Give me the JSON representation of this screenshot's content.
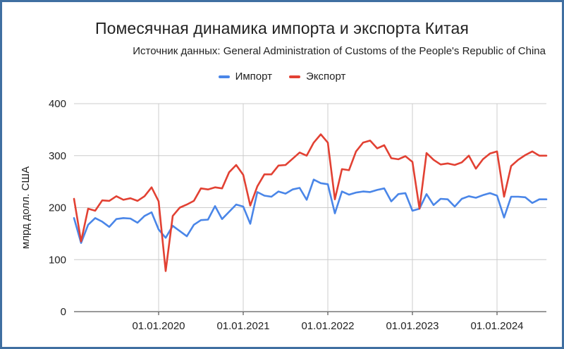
{
  "chart_data": {
    "type": "line",
    "title": "Помесячная динамика импорта и экспорта Китая",
    "subtitle": "Источник данных: General Administration of Customs of the People's Republic of China",
    "xlabel": "",
    "ylabel": "млрд долл. США",
    "ylim": [
      0,
      400
    ],
    "yticks": [
      0,
      100,
      200,
      300,
      400
    ],
    "x_range": [
      "2019-01-01",
      "2024-08-01"
    ],
    "xticks": [
      {
        "date": "2020-01-01",
        "label": "01.01.2020"
      },
      {
        "date": "2021-01-01",
        "label": "01.01.2021"
      },
      {
        "date": "2022-01-01",
        "label": "01.01.2022"
      },
      {
        "date": "2023-01-01",
        "label": "01.01.2023"
      },
      {
        "date": "2024-01-01",
        "label": "01.01.2024"
      }
    ],
    "grid": "y and x-ticks",
    "legend_position": "top",
    "x": [
      "2019-01",
      "2019-02",
      "2019-03",
      "2019-04",
      "2019-05",
      "2019-06",
      "2019-07",
      "2019-08",
      "2019-09",
      "2019-10",
      "2019-11",
      "2019-12",
      "2020-01",
      "2020-02",
      "2020-03",
      "2020-04",
      "2020-05",
      "2020-06",
      "2020-07",
      "2020-08",
      "2020-09",
      "2020-10",
      "2020-11",
      "2020-12",
      "2021-01",
      "2021-02",
      "2021-03",
      "2021-04",
      "2021-05",
      "2021-06",
      "2021-07",
      "2021-08",
      "2021-09",
      "2021-10",
      "2021-11",
      "2021-12",
      "2022-01",
      "2022-02",
      "2022-03",
      "2022-04",
      "2022-05",
      "2022-06",
      "2022-07",
      "2022-08",
      "2022-09",
      "2022-10",
      "2022-11",
      "2022-12",
      "2023-01",
      "2023-02",
      "2023-03",
      "2023-04",
      "2023-05",
      "2023-06",
      "2023-07",
      "2023-08",
      "2023-09",
      "2023-10",
      "2023-11",
      "2023-12",
      "2024-01",
      "2024-02",
      "2024-03",
      "2024-04",
      "2024-05",
      "2024-06",
      "2024-07",
      "2024-08"
    ],
    "series": [
      {
        "name": "Импорт",
        "color": "#4a86e8",
        "values": [
          180,
          132,
          167,
          180,
          173,
          163,
          178,
          180,
          179,
          171,
          184,
          191,
          158,
          142,
          165,
          155,
          145,
          167,
          176,
          177,
          203,
          178,
          192,
          206,
          202,
          169,
          230,
          223,
          221,
          231,
          227,
          235,
          238,
          215,
          254,
          247,
          245,
          189,
          231,
          225,
          229,
          231,
          230,
          234,
          237,
          212,
          226,
          228,
          194,
          198,
          226,
          205,
          217,
          216,
          202,
          217,
          222,
          219,
          224,
          228,
          223,
          181,
          221,
          221,
          220,
          209,
          216,
          216
        ]
      },
      {
        "name": "Экспорт",
        "color": "#e24133",
        "values": [
          217,
          135,
          198,
          194,
          214,
          213,
          222,
          215,
          218,
          213,
          222,
          239,
          212,
          78,
          184,
          200,
          206,
          213,
          237,
          235,
          239,
          237,
          268,
          282,
          263,
          204,
          241,
          264,
          264,
          281,
          282,
          294,
          306,
          300,
          325,
          341,
          325,
          216,
          274,
          272,
          308,
          325,
          329,
          314,
          320,
          295,
          293,
          299,
          288,
          198,
          305,
          292,
          283,
          285,
          282,
          287,
          300,
          275,
          293,
          304,
          308,
          221,
          280,
          292,
          301,
          308,
          300,
          300
        ]
      }
    ]
  }
}
